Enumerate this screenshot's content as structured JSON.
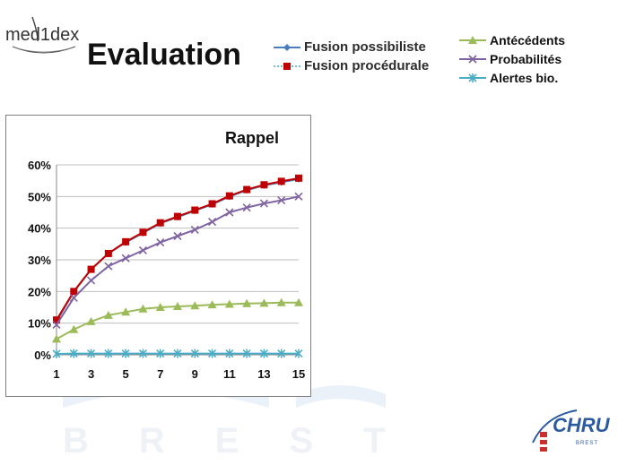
{
  "logo": {
    "text": "med1dex"
  },
  "title": "Evaluation",
  "watermark": {
    "text": "BREST"
  },
  "footer_logo": {
    "text": "CHRU",
    "subtext": "BREST"
  },
  "legend_left": [
    {
      "label": "Fusion possibiliste",
      "color": "#4a7ebb",
      "marker": "diamond"
    },
    {
      "label": "Fusion procédurale",
      "color": "#c00000",
      "marker": "square"
    }
  ],
  "legend_right": [
    {
      "label": "Antécédents",
      "color": "#9bbb59",
      "marker": "triangle"
    },
    {
      "label": "Probabilités",
      "color": "#8064a2",
      "marker": "x"
    },
    {
      "label": "Alertes bio.",
      "color": "#4bacc6",
      "marker": "star"
    }
  ],
  "chart_data": {
    "type": "line",
    "title": "Rappel",
    "x": [
      1,
      2,
      3,
      4,
      5,
      6,
      7,
      8,
      9,
      10,
      11,
      12,
      13,
      14,
      15
    ],
    "xticks": [
      "1",
      "3",
      "5",
      "7",
      "9",
      "11",
      "13",
      "15"
    ],
    "yticks": [
      "0%",
      "10%",
      "20%",
      "30%",
      "40%",
      "50%",
      "60%"
    ],
    "ylim": [
      0,
      0.6
    ],
    "grid": true,
    "series": [
      {
        "name": "Fusion possibiliste",
        "color": "#4a7ebb",
        "marker": "diamond",
        "values": [
          0.105,
          0.2,
          0.27,
          0.32,
          0.355,
          0.385,
          0.415,
          0.435,
          0.455,
          0.475,
          0.5,
          0.52,
          0.535,
          0.545,
          0.555
        ]
      },
      {
        "name": "Fusion procédurale",
        "color": "#c00000",
        "marker": "square",
        "values": [
          0.11,
          0.2,
          0.27,
          0.32,
          0.357,
          0.387,
          0.417,
          0.437,
          0.457,
          0.477,
          0.502,
          0.522,
          0.537,
          0.548,
          0.558
        ]
      },
      {
        "name": "Antécédents",
        "color": "#9bbb59",
        "marker": "triangle",
        "values": [
          0.05,
          0.08,
          0.105,
          0.125,
          0.135,
          0.145,
          0.15,
          0.153,
          0.155,
          0.158,
          0.16,
          0.162,
          0.163,
          0.165,
          0.165
        ]
      },
      {
        "name": "Probabilités",
        "color": "#8064a2",
        "marker": "x",
        "values": [
          0.095,
          0.18,
          0.235,
          0.28,
          0.305,
          0.33,
          0.355,
          0.375,
          0.395,
          0.42,
          0.45,
          0.465,
          0.478,
          0.488,
          0.5
        ]
      },
      {
        "name": "Alertes bio.",
        "color": "#4bacc6",
        "marker": "star",
        "values": [
          0.003,
          0.004,
          0.004,
          0.004,
          0.004,
          0.004,
          0.004,
          0.004,
          0.004,
          0.004,
          0.004,
          0.004,
          0.004,
          0.004,
          0.004
        ]
      }
    ]
  }
}
